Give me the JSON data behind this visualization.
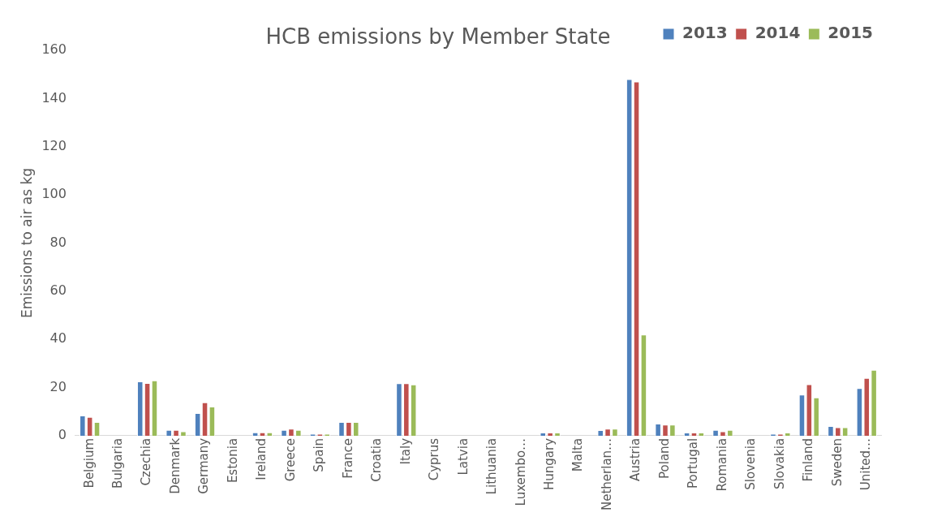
{
  "chart_data": {
    "type": "bar",
    "title": "HCB emissions by Member State",
    "ylabel": "Emissions to air as kg",
    "categories": [
      "Belgium",
      "Bulgaria",
      "Czechia",
      "Denmark",
      "Germany",
      "Estonia",
      "Ireland",
      "Greece",
      "Spain",
      "France",
      "Croatia",
      "Italy",
      "Cyprus",
      "Latvia",
      "Lithuania",
      "Luxembo…",
      "Hungary",
      "Malta",
      "Netherlan…",
      "Austria",
      "Poland",
      "Portugal",
      "Romania",
      "Slovenia",
      "Slovakia",
      "Finland",
      "Sweden",
      "United…"
    ],
    "series": [
      {
        "name": "2013",
        "color": "#4f81bd",
        "values": [
          8.4,
          0,
          22.5,
          2.4,
          9.4,
          0,
          1.4,
          2.4,
          0.8,
          5.7,
          0,
          21.8,
          0,
          0,
          0,
          0,
          1.3,
          0,
          2.3,
          148,
          5,
          1.3,
          2.4,
          0,
          0.8,
          17.1,
          4,
          19.8
        ]
      },
      {
        "name": "2014",
        "color": "#c0504d",
        "values": [
          7.8,
          0,
          21.9,
          2.4,
          13.9,
          0,
          1.4,
          2.9,
          0.8,
          5.7,
          0,
          21.8,
          0,
          0,
          0,
          0,
          1.3,
          0,
          2.9,
          147,
          4.6,
          1.3,
          1.8,
          0,
          0.8,
          21.4,
          3.5,
          24
        ]
      },
      {
        "name": "2015",
        "color": "#9bbb59",
        "values": [
          5.7,
          0,
          23,
          1.8,
          12.1,
          0,
          1.4,
          2.4,
          0.8,
          5.7,
          0,
          21.3,
          0,
          0,
          0,
          0,
          1.3,
          0,
          2.9,
          42,
          4.6,
          1.3,
          2.4,
          0,
          1.3,
          15.9,
          3.5,
          27.3
        ]
      }
    ],
    "ylim": [
      0,
      160
    ],
    "yticks": [
      0,
      20,
      40,
      60,
      80,
      100,
      120,
      140,
      160
    ],
    "grid": false,
    "legend": "top right"
  }
}
